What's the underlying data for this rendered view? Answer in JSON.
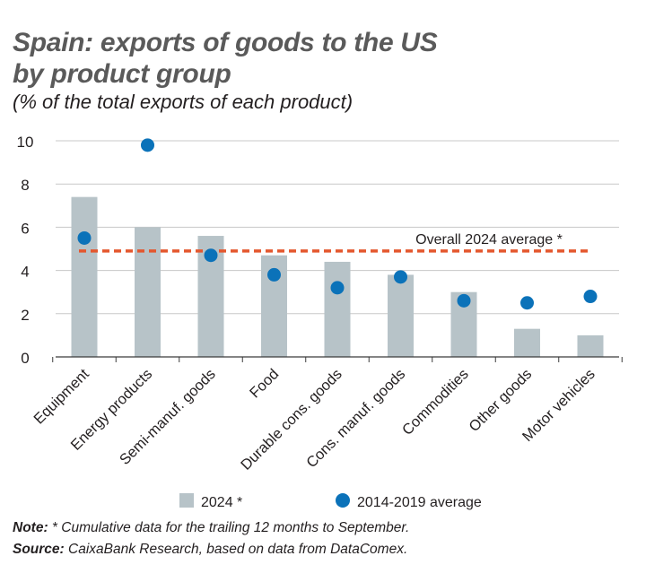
{
  "chart_data": {
    "type": "bar",
    "title_line1": "Spain: exports of goods to the US",
    "title_line2": "by product group",
    "subtitle": "(% of the total exports of each product)",
    "categories": [
      "Equipment",
      "Energy products",
      "Semi-manuf. goods",
      "Food",
      "Durable cons. goods",
      "Cons. manuf. goods",
      "Commodities",
      "Other goods",
      "Motor vehicles"
    ],
    "series": [
      {
        "name": "2024 *",
        "type": "bar",
        "color": "#b7c3c8",
        "values": [
          7.4,
          6.0,
          5.6,
          4.7,
          4.4,
          3.8,
          3.0,
          1.3,
          1.0
        ]
      },
      {
        "name": "2014-2019 average",
        "type": "dot",
        "color": "#0b72b9",
        "values": [
          5.5,
          9.8,
          4.7,
          3.8,
          3.2,
          3.7,
          2.6,
          2.5,
          2.8
        ]
      }
    ],
    "reference_line": {
      "label": "Overall 2024 average *",
      "value": 4.9,
      "color": "#e4572e"
    },
    "y_ticks": [
      "0",
      "2",
      "4",
      "6",
      "8",
      "10"
    ],
    "ylim": [
      0,
      10
    ],
    "grid": true,
    "legend_position": "bottom"
  },
  "notes": {
    "note_label": "Note:",
    "note_text": " * Cumulative data for the trailing 12 months to September.",
    "source_label": "Source:",
    "source_text": " CaixaBank Research, based on data from DataComex."
  }
}
